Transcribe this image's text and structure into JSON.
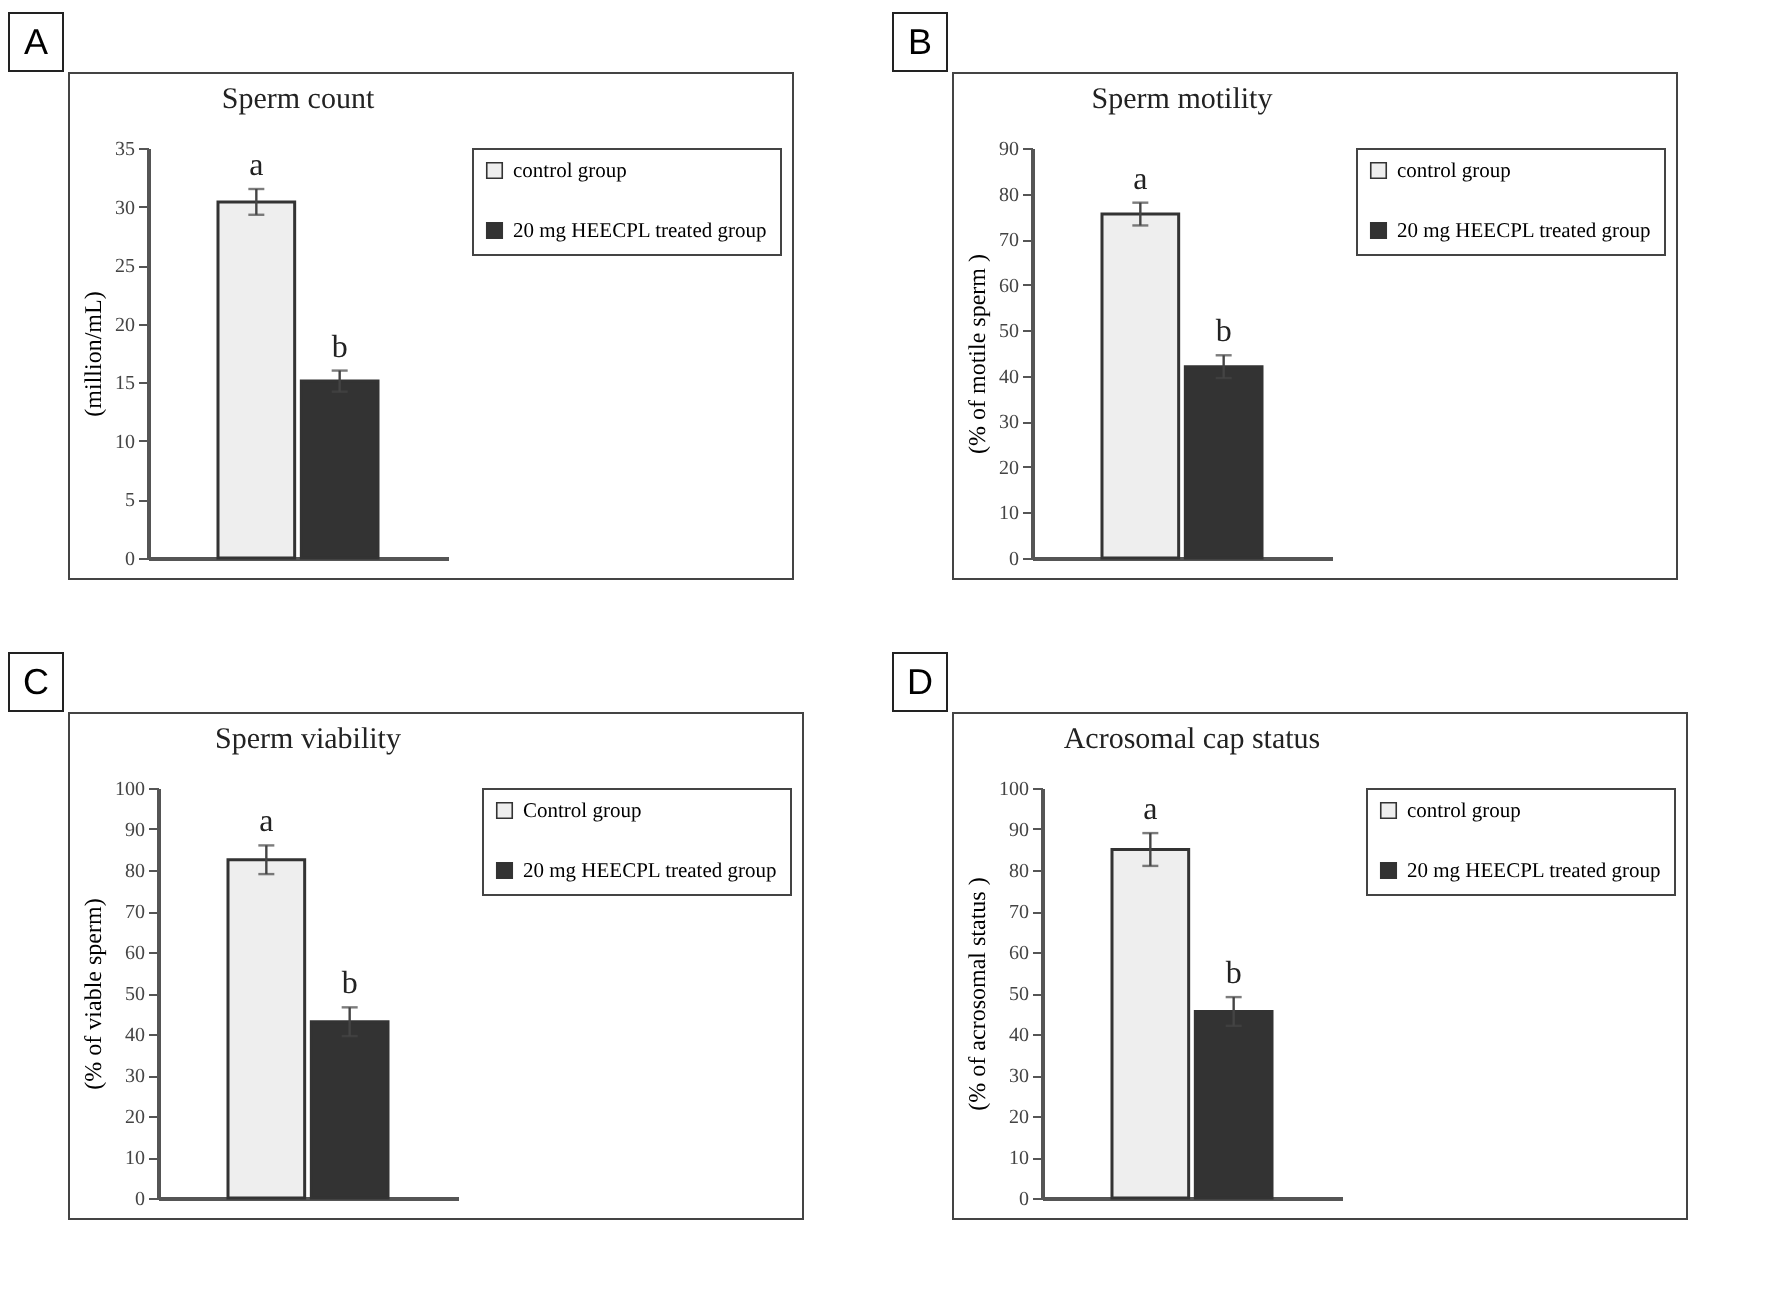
{
  "chart_data": [
    {
      "type": "bar",
      "title": "Sperm count",
      "ylabel": "(million/mL)",
      "categories": [
        null
      ],
      "ylim": [
        0,
        35
      ],
      "yticks": [
        0,
        5,
        10,
        15,
        20,
        25,
        30,
        35
      ],
      "legend": "right",
      "tick_labels": "y",
      "grid": false,
      "series": [
        {
          "name": "control group",
          "color": "#eeeeee",
          "values": [
            30.4
          ],
          "errors": [
            1.1
          ]
        },
        {
          "name": "20 mg HEECPL treated group",
          "color": "#333333",
          "values": [
            15.1
          ],
          "errors": [
            0.9
          ]
        }
      ],
      "annotations": [
        "A",
        "a",
        "b"
      ]
    },
    {
      "type": "bar",
      "title": "Sperm motility",
      "ylabel": "(% of motile sperm )",
      "categories": [
        null
      ],
      "ylim": [
        0,
        90
      ],
      "yticks": [
        0,
        10,
        20,
        30,
        40,
        50,
        60,
        70,
        80,
        90
      ],
      "legend": "right",
      "tick_labels": "y",
      "grid": false,
      "series": [
        {
          "name": "control group",
          "color": "#eeeeee",
          "values": [
            75.5
          ],
          "errors": [
            2.5
          ]
        },
        {
          "name": "20 mg HEECPL treated group",
          "color": "#333333",
          "values": [
            42
          ],
          "errors": [
            2.5
          ]
        }
      ],
      "annotations": [
        "B",
        "a",
        "b"
      ]
    },
    {
      "type": "bar",
      "title": "Sperm viability",
      "ylabel": "(% of viable sperm)",
      "categories": [
        null
      ],
      "ylim": [
        0,
        100
      ],
      "yticks": [
        0,
        10,
        20,
        30,
        40,
        50,
        60,
        70,
        80,
        90,
        100
      ],
      "legend": "right",
      "tick_labels": "y",
      "grid": false,
      "series": [
        {
          "name": "Control group",
          "color": "#eeeeee",
          "values": [
            82.5
          ],
          "errors": [
            3.5
          ]
        },
        {
          "name": "20 mg HEECPL treated group",
          "color": "#333333",
          "values": [
            43
          ],
          "errors": [
            3.5
          ]
        }
      ],
      "annotations": [
        "C",
        "a",
        "b"
      ]
    },
    {
      "type": "bar",
      "title": "Acrosomal cap status",
      "ylabel": "(% of  acrosomal status )",
      "categories": [
        null
      ],
      "ylim": [
        0,
        100
      ],
      "yticks": [
        0,
        10,
        20,
        30,
        40,
        50,
        60,
        70,
        80,
        90,
        100
      ],
      "legend": "right",
      "tick_labels": "y",
      "grid": false,
      "series": [
        {
          "name": "control group",
          "color": "#eeeeee",
          "values": [
            85
          ],
          "errors": [
            4
          ]
        },
        {
          "name": "20 mg HEECPL treated group",
          "color": "#333333",
          "values": [
            45.5
          ],
          "errors": [
            3.5
          ]
        }
      ],
      "annotations": [
        "D",
        "a",
        "b"
      ]
    }
  ]
}
